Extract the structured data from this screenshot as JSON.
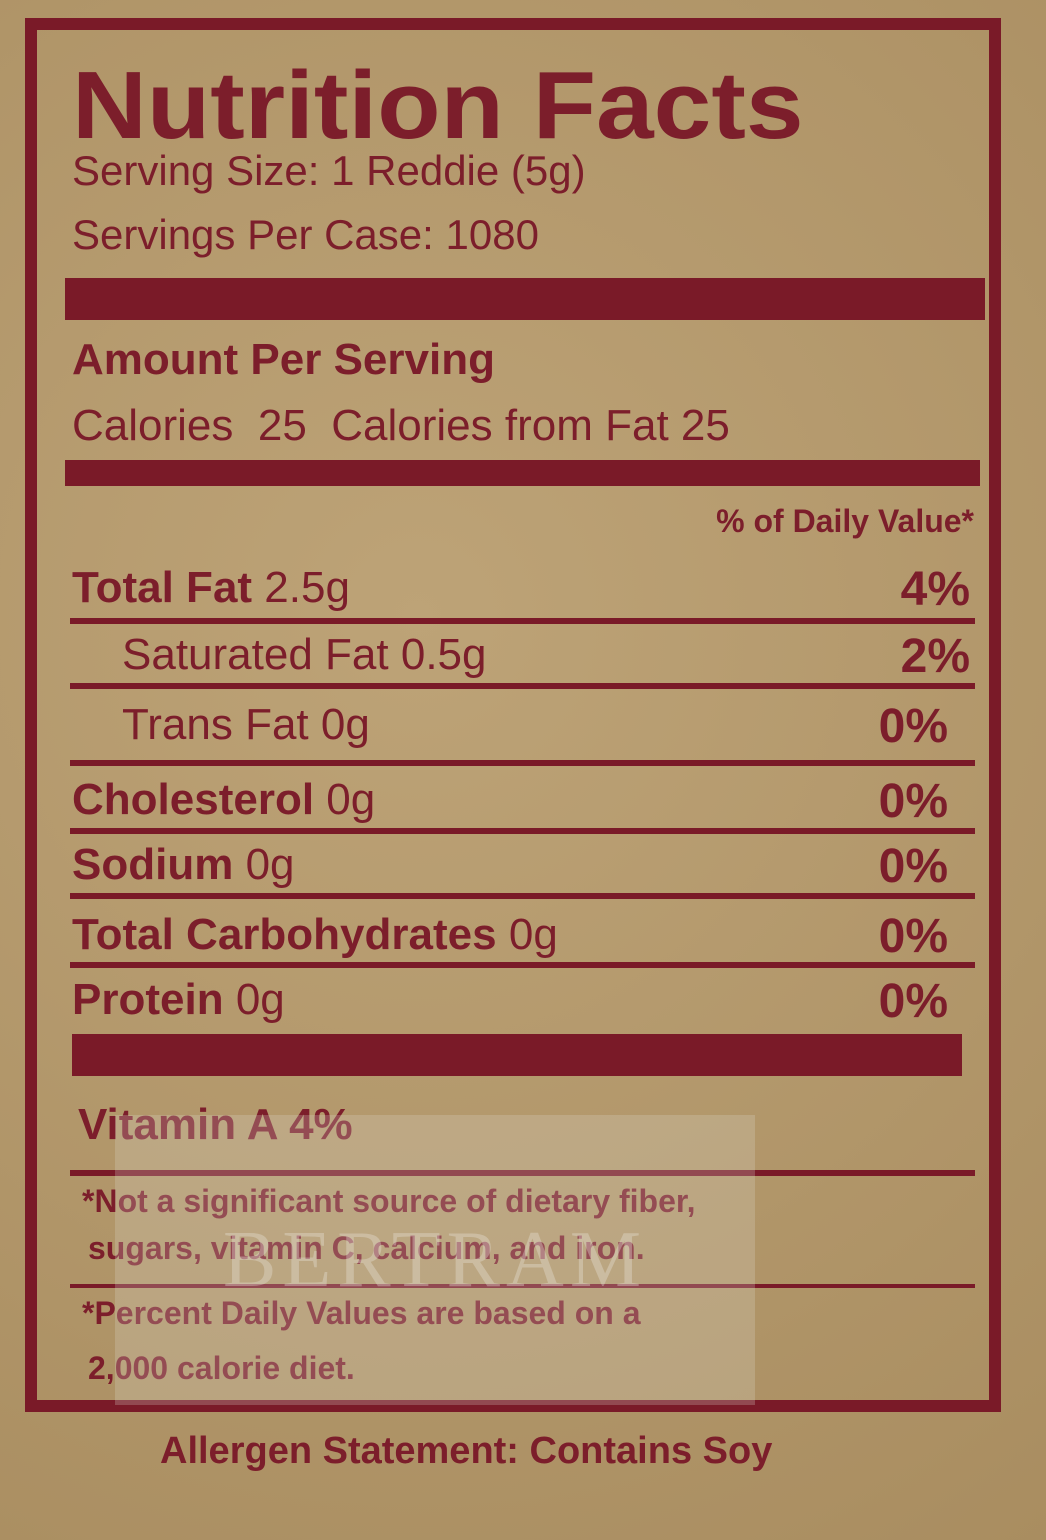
{
  "title": "Nutrition Facts",
  "serving_size": "Serving Size: 1 Reddie (5g)",
  "servings_per_case": "Servings Per Case: 1080",
  "amount_per_serving": "Amount Per Serving",
  "calories": {
    "label": "Calories",
    "value": "25",
    "from_fat_label": "Calories from Fat",
    "from_fat_value": "25"
  },
  "dv_header": "% of Daily Value*",
  "rows": [
    {
      "name": "Total Fat",
      "amount": "2.5g",
      "dv": "4%"
    },
    {
      "name": "Saturated Fat",
      "amount": "0.5g",
      "dv": "2%"
    },
    {
      "name": "Trans Fat",
      "amount": "0g",
      "dv": "0%"
    },
    {
      "name": "Cholesterol",
      "amount": "0g",
      "dv": "0%"
    },
    {
      "name": "Sodium",
      "amount": "0g",
      "dv": "0%"
    },
    {
      "name": "Total Carbohydrates",
      "amount": "0g",
      "dv": "0%"
    },
    {
      "name": "Protein",
      "amount": "0g",
      "dv": "0%"
    }
  ],
  "vitamin": "Vitamin A 4%",
  "footnotes": [
    [
      "*Not a significant source of dietary fiber,",
      "sugars, vitamin C, calcium, and iron."
    ],
    [
      "*Percent Daily Values are based on a",
      "2,000 calorie diet."
    ]
  ],
  "watermark": "BERTRAM",
  "allergen": "Allergen Statement: Contains Soy"
}
